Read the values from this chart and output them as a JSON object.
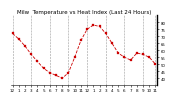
{
  "title_text": "Milw  Temperature vs Heat Index (Last 24 Hours)",
  "bg_color": "#ffffff",
  "plot_bg": "#ffffff",
  "line_color": "#cc0000",
  "line_style": "--",
  "marker": "s",
  "marker_size": 1.8,
  "grid_color": "#999999",
  "x_values": [
    0,
    1,
    2,
    3,
    4,
    5,
    6,
    7,
    8,
    9,
    10,
    11,
    12,
    13,
    14,
    15,
    16,
    17,
    18,
    19,
    20,
    21,
    22,
    23
  ],
  "y_values": [
    72,
    68,
    63,
    57,
    52,
    47,
    44,
    42,
    40,
    44,
    55,
    67,
    75,
    78,
    77,
    72,
    65,
    58,
    55,
    53,
    58,
    57,
    55,
    50
  ],
  "ylim": [
    35,
    85
  ],
  "y_ticks": [
    40,
    45,
    50,
    55,
    60,
    65,
    70,
    75,
    80
  ],
  "x_tick_labels": [
    "12",
    "1",
    "2",
    "3",
    "4",
    "5",
    "6",
    "7",
    "8",
    "9",
    "10",
    "11",
    "12",
    "1",
    "2",
    "3",
    "4",
    "5",
    "6",
    "7",
    "8",
    "9",
    "10",
    "11"
  ],
  "title_fontsize": 4.0,
  "tick_fontsize": 2.8,
  "xlabel_fontsize": 3.0,
  "vgrid_positions": [
    0,
    3,
    6,
    9,
    12,
    15,
    18,
    21,
    23
  ],
  "right_border_color": "#000000"
}
